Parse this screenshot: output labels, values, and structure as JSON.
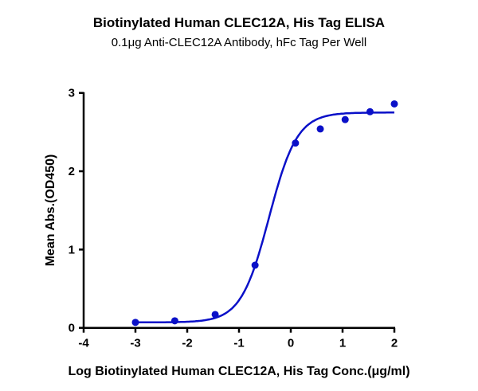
{
  "chart_data": {
    "type": "scatter",
    "title": "Biotinylated Human CLEC12A, His Tag ELISA",
    "subtitle": "0.1μg Anti-CLEC12A Antibody, hFc Tag Per Well",
    "xlabel": "Log Biotinylated Human CLEC12A, His Tag Conc.(μg/ml)",
    "ylabel": "Mean Abs.(OD450)",
    "xlim": [
      -4,
      2
    ],
    "ylim": [
      0,
      3
    ],
    "xticks": [
      "-4",
      "-3",
      "-2",
      "-1",
      "0",
      "1",
      "2"
    ],
    "yticks": [
      "0",
      "1",
      "2",
      "3"
    ],
    "grid": false,
    "color": "#0a10c8",
    "points": {
      "x": [
        -3.0,
        -2.24,
        -1.46,
        -0.69,
        0.09,
        0.57,
        1.05,
        1.53,
        2.0
      ],
      "y": [
        0.07,
        0.09,
        0.17,
        0.8,
        2.36,
        2.54,
        2.66,
        2.76,
        2.86
      ]
    },
    "fit_curve": {
      "model": "4PL",
      "bottom": 0.07,
      "top": 2.75,
      "logEC50": -0.42,
      "hill": 1.6,
      "x_range": [
        -3.0,
        2.0
      ]
    }
  }
}
